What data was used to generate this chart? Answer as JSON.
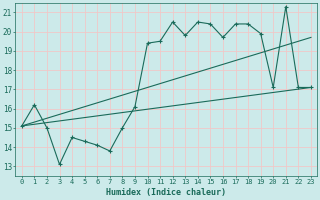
{
  "xlabel": "Humidex (Indice chaleur)",
  "bg_color": "#cceaea",
  "grid_color": "#f0c8c8",
  "line_color": "#1a6b5a",
  "xlim": [
    -0.5,
    23.5
  ],
  "ylim": [
    12.5,
    21.5
  ],
  "xticks": [
    0,
    1,
    2,
    3,
    4,
    5,
    6,
    7,
    8,
    9,
    10,
    11,
    12,
    13,
    14,
    15,
    16,
    17,
    18,
    19,
    20,
    21,
    22,
    23
  ],
  "yticks": [
    13,
    14,
    15,
    16,
    17,
    18,
    19,
    20,
    21
  ],
  "line1_x": [
    0,
    1,
    2,
    3,
    4,
    5,
    6,
    7,
    8,
    9,
    10,
    11,
    12,
    13,
    14,
    15,
    16,
    17,
    18,
    19,
    20,
    21,
    22,
    23
  ],
  "line1_y": [
    15.1,
    16.2,
    15.0,
    13.1,
    14.5,
    14.3,
    14.1,
    13.8,
    15.0,
    16.1,
    19.4,
    19.5,
    20.5,
    19.8,
    20.5,
    20.4,
    19.7,
    20.4,
    20.4,
    19.9,
    17.1,
    21.3,
    17.1,
    17.1
  ],
  "line2_x": [
    0,
    23
  ],
  "line2_y": [
    15.1,
    19.7
  ],
  "line3_x": [
    0,
    23
  ],
  "line3_y": [
    15.1,
    17.1
  ]
}
